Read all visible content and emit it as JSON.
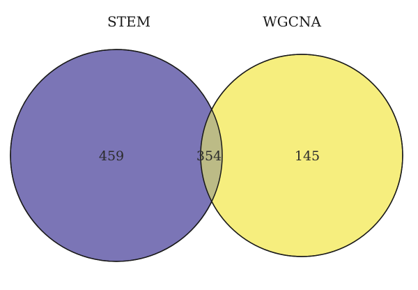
{
  "diagram": {
    "type": "venn",
    "sets": [
      {
        "id": "stem",
        "label": "STEM",
        "fill": "#7b75b6"
      },
      {
        "id": "wgcna",
        "label": "WGCNA",
        "fill": "#f6ee7e"
      }
    ],
    "intersection_fill": "#bcbb86",
    "outline_color": "#1a1a1a",
    "regions": {
      "stem_only": "459",
      "both": "354",
      "wgcna_only": "145"
    }
  }
}
